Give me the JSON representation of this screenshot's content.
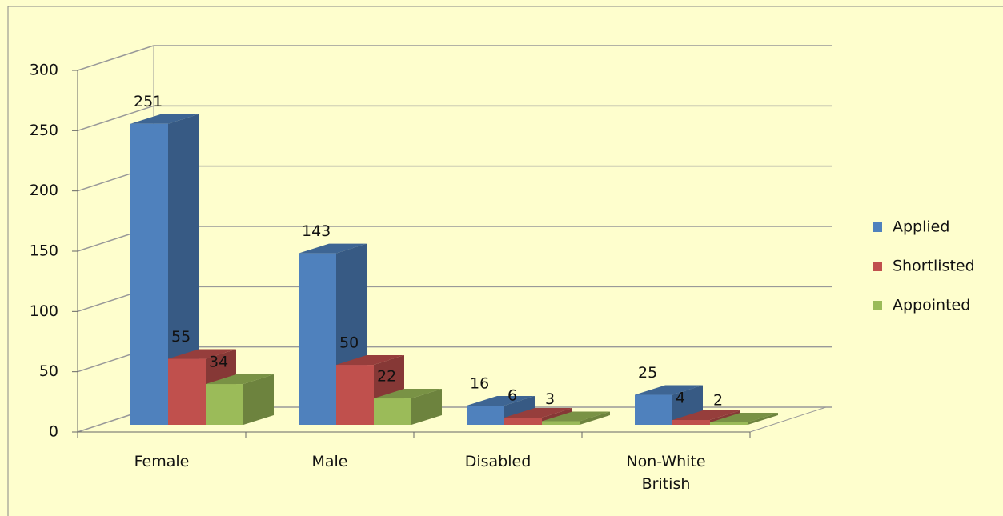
{
  "chart_data": {
    "type": "bar",
    "three_d": true,
    "categories": [
      "Female",
      "Male",
      "Disabled",
      "Non-White British"
    ],
    "series": [
      {
        "name": "Applied",
        "color": "#4f81bd",
        "values": [
          251,
          143,
          16,
          25
        ]
      },
      {
        "name": "Shortlisted",
        "color": "#c0504d",
        "values": [
          55,
          50,
          6,
          4
        ]
      },
      {
        "name": "Appointed",
        "color": "#9bbb59",
        "values": [
          34,
          22,
          3,
          2
        ]
      }
    ],
    "ylim": [
      0,
      300
    ],
    "yticks": [
      0,
      50,
      100,
      150,
      200,
      250,
      300
    ],
    "grid": true,
    "legend": "right"
  }
}
